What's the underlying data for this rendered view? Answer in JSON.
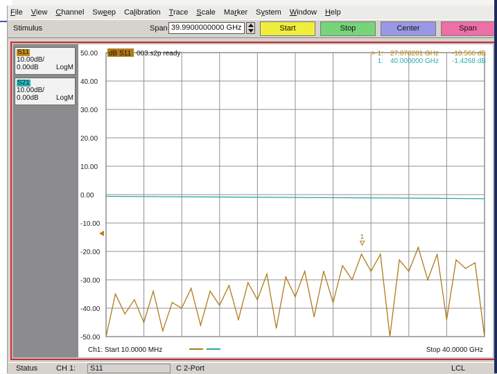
{
  "menu": [
    "File",
    "View",
    "Channel",
    "Sweep",
    "Calibration",
    "Trace",
    "Scale",
    "Marker",
    "System",
    "Window",
    "Help"
  ],
  "menu_underline": [
    0,
    0,
    0,
    2,
    2,
    0,
    0,
    2,
    1,
    0,
    0
  ],
  "stimulus": {
    "label": "Stimulus",
    "span_label": "Span",
    "span_value": "39.9900000000 GHz",
    "buttons": [
      {
        "label": "Start",
        "color": "#f0ee3c"
      },
      {
        "label": "Stop",
        "color": "#78d478"
      },
      {
        "label": "Center",
        "color": "#9a98e4"
      },
      {
        "label": "Span",
        "color": "#ee6fa5"
      }
    ]
  },
  "traces": [
    {
      "name": "S11",
      "scale": "10.00dB/",
      "ref": "0.00dB",
      "format": "LogM",
      "color": "#c08a1c",
      "tag_text": "#2b1a00"
    },
    {
      "name": "S21",
      "scale": "10.00dB/",
      "ref": "0.00dB",
      "format": "LogM",
      "color": "#2fb2b4",
      "tag_text": "#00303a"
    }
  ],
  "plot": {
    "title_badge": "dB S11",
    "title_text": "003.s2p ready",
    "y_ticks": [
      "50.00",
      "40.00",
      "30.00",
      "20.00",
      "10.00",
      "0.00",
      "-10.00",
      "-20.00",
      "-30.00",
      "-40.00",
      "-50.00"
    ],
    "footer_left": "Ch1: Start  10.0000 MHz",
    "footer_right": "Stop  40.0000 GHz",
    "marker_label": "1",
    "markers": [
      {
        "index": "> 1:",
        "freq": "27.078281 GHz",
        "value": "-18.566 dB",
        "color": "#b8860b"
      },
      {
        "index": "1:",
        "freq": "40.000000 GHz",
        "value": "-1.4268 dB",
        "color": "#2fa8aa"
      }
    ]
  },
  "status": {
    "label": "Status",
    "channel": "CH 1:",
    "param": "S11",
    "port": "C  2-Port",
    "mode": "LCL"
  },
  "colors": {
    "s11": "#b07a1a",
    "s21": "#2aa6a8",
    "grid": "#8f8f8f",
    "border": "#d02a2a"
  },
  "chart_data": {
    "type": "line",
    "xlabel": "",
    "ylabel": "",
    "xlim": [
      0.01,
      40
    ],
    "ylim": [
      -50,
      50
    ],
    "x_unit": "GHz",
    "y_unit": "dB",
    "series": [
      {
        "name": "S21",
        "x": [
          0.01,
          5,
          10,
          15,
          20,
          25,
          30,
          35,
          40
        ],
        "y": [
          -0.6,
          -0.7,
          -0.8,
          -0.9,
          -1.0,
          -1.1,
          -1.2,
          -1.3,
          -1.43
        ]
      },
      {
        "name": "S11",
        "x": [
          0.01,
          1,
          2,
          3,
          4,
          5,
          6,
          7,
          8,
          9,
          10,
          11,
          12,
          13,
          14,
          15,
          16,
          17,
          18,
          19,
          20,
          21,
          22,
          23,
          24,
          25,
          26,
          27,
          28,
          29,
          30,
          31,
          32,
          33,
          34,
          35,
          36,
          37,
          38,
          39,
          40
        ],
        "y": [
          -50,
          -35,
          -42,
          -37,
          -45,
          -34,
          -48,
          -38,
          -40,
          -33,
          -46,
          -34,
          -39,
          -32,
          -44,
          -31,
          -37,
          -28,
          -47,
          -29,
          -36,
          -27,
          -43,
          -27,
          -38,
          -25,
          -30,
          -21,
          -27,
          -21,
          -50,
          -23,
          -27,
          -18.6,
          -30,
          -21,
          -44,
          -23,
          -26,
          -24,
          -50
        ]
      }
    ]
  }
}
